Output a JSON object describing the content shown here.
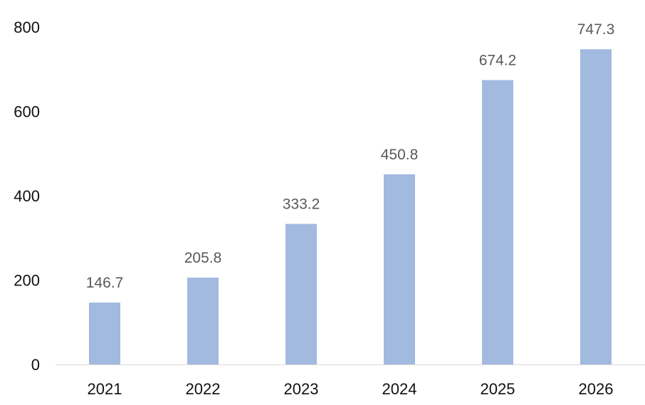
{
  "chart_data": {
    "type": "bar",
    "title": "",
    "xlabel": "",
    "ylabel": "",
    "categories": [
      "2021",
      "2022",
      "2023",
      "2024",
      "2025",
      "2026"
    ],
    "values": [
      146.7,
      205.8,
      333.2,
      450.8,
      674.2,
      747.3
    ],
    "data_labels": [
      "146.7",
      "205.8",
      "333.2",
      "450.8",
      "674.2",
      "747.3"
    ],
    "ylim": [
      0,
      800
    ],
    "y_ticks": [
      "0",
      "200",
      "400",
      "600",
      "800"
    ],
    "grid": false,
    "legend": "none",
    "bar_color": "#a2b9e0",
    "axis_color": "#d9d9d9"
  }
}
